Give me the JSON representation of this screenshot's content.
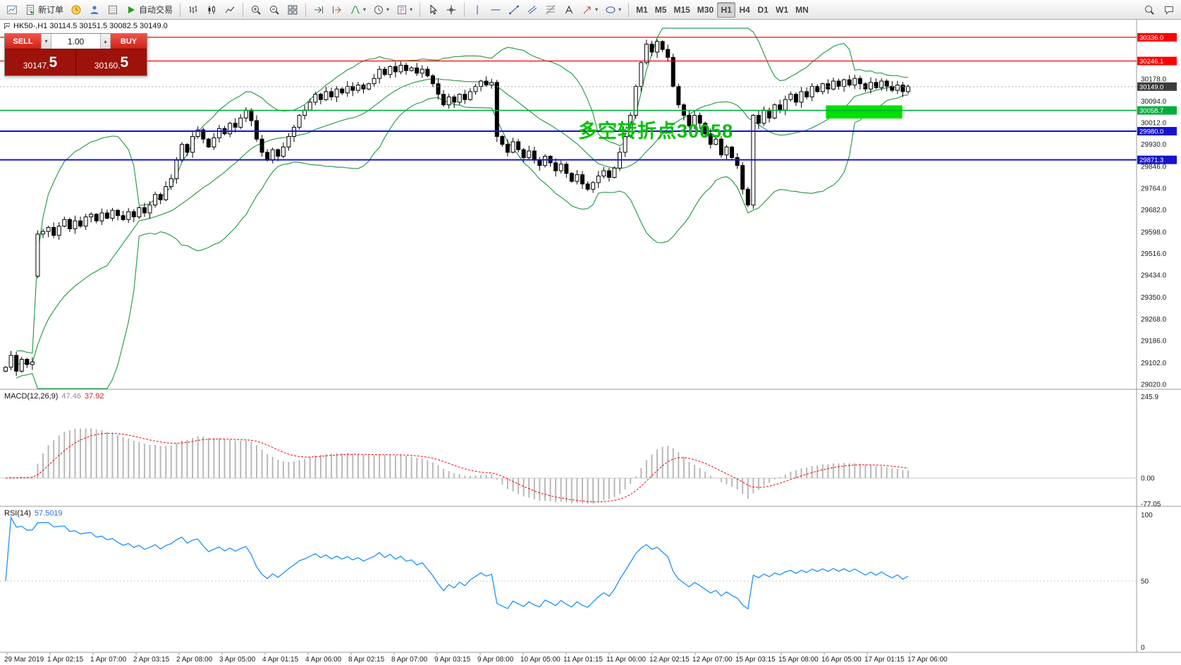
{
  "toolbar": {
    "groups": [
      {
        "items": [
          {
            "name": "new-chart",
            "icon": "new-chart"
          },
          {
            "name": "new-order",
            "icon": "new-order",
            "label": "新订单"
          },
          {
            "name": "market-watch",
            "icon": "market-watch"
          },
          {
            "name": "navigator",
            "icon": "navigator"
          },
          {
            "name": "data-window",
            "icon": "data-window"
          },
          {
            "name": "autotrading",
            "icon": "autotrading",
            "label": "自动交易"
          }
        ]
      },
      {
        "items": [
          {
            "name": "bar-chart",
            "icon": "bar-chart"
          },
          {
            "name": "candlestick-chart",
            "icon": "candlestick"
          },
          {
            "name": "line-chart",
            "icon": "line-chart"
          }
        ]
      },
      {
        "items": [
          {
            "name": "zoom-in",
            "icon": "zoom-in"
          },
          {
            "name": "zoom-out",
            "icon": "zoom-out"
          },
          {
            "name": "tile-windows",
            "icon": "tile-windows"
          }
        ]
      },
      {
        "items": [
          {
            "name": "auto-scroll",
            "icon": "auto-scroll"
          },
          {
            "name": "chart-shift",
            "icon": "chart-shift"
          },
          {
            "name": "indicators",
            "icon": "indicators",
            "arrow": true
          },
          {
            "name": "periods",
            "icon": "periods",
            "arrow": true
          },
          {
            "name": "templates",
            "icon": "templates",
            "arrow": true
          }
        ]
      },
      {
        "items": [
          {
            "name": "cursor",
            "icon": "cursor"
          },
          {
            "name": "crosshair",
            "icon": "crosshair"
          }
        ]
      },
      {
        "items": [
          {
            "name": "vertical-line",
            "icon": "vertical-line"
          },
          {
            "name": "horizontal-line",
            "icon": "horizontal-line"
          },
          {
            "name": "trendline",
            "icon": "trendline"
          },
          {
            "name": "equidistant-channel",
            "icon": "channel"
          },
          {
            "name": "fibonacci-retracement",
            "icon": "fibonacci"
          },
          {
            "name": "text-label",
            "icon": "text"
          },
          {
            "name": "arrow-objects",
            "icon": "arrows",
            "arrow": true
          },
          {
            "name": "shapes",
            "icon": "shapes",
            "arrow": true
          }
        ]
      }
    ],
    "timeframes": [
      {
        "label": "M1"
      },
      {
        "label": "M5"
      },
      {
        "label": "M15"
      },
      {
        "label": "M30"
      },
      {
        "label": "H1",
        "active": true
      },
      {
        "label": "H4"
      },
      {
        "label": "D1"
      },
      {
        "label": "W1"
      },
      {
        "label": "MN"
      }
    ],
    "right_items": [
      {
        "name": "search",
        "icon": "search"
      },
      {
        "name": "chat",
        "icon": "chat"
      }
    ]
  },
  "chart": {
    "symbol_info": "HK50-,H1  30114.5 30151.5 30082.5 30149.0",
    "annotation": {
      "text": "多空转折点30058",
      "color": "#00C000"
    },
    "trade_panel": {
      "sell_label": "SELL",
      "buy_label": "BUY",
      "volume": "1.00",
      "sell_price_main": "30147.",
      "sell_price_big": "5",
      "buy_price_main": "30160.",
      "buy_price_big": "5"
    },
    "hlines": [
      {
        "price": 30336.0,
        "label": "30336.0",
        "color": "#FF0000",
        "width": 1.3
      },
      {
        "price": 30246.1,
        "label": "30246.1",
        "color": "#FF0000",
        "width": 1.3
      },
      {
        "price": 30058.7,
        "label": "30058.7",
        "color": "#00AE3C",
        "width": 1.6
      },
      {
        "price": 29980.0,
        "label": "29980.0",
        "color": "#1414CC",
        "width": 2
      },
      {
        "price": 29871.3,
        "label": "29871.3",
        "color": "#1414CC",
        "width": 2
      }
    ],
    "current_price": {
      "value": 30149.0,
      "label": "30149.0",
      "box_color": "#3C3C3C"
    },
    "price_ticks": [
      "30178.0",
      "30094.0",
      "30012.0",
      "29930.0",
      "29846.0",
      "29764.0",
      "29682.0",
      "29598.0",
      "29516.0",
      "29434.0",
      "29350.0",
      "29268.0",
      "29186.0",
      "29102.0",
      "29020.0"
    ],
    "highlight_box": {
      "bar_start": 154,
      "bar_end": 167.5,
      "price_top": 30078,
      "price_bottom": 30028,
      "color": "#00E000"
    }
  },
  "indicators": {
    "macd": {
      "name": "MACD(12,26,9)",
      "value_main": "47.46",
      "value_signal": "37.92",
      "scale": [
        "245.9",
        "0.00",
        "-77.05"
      ],
      "fast": 12,
      "slow": 26,
      "signal": 9
    },
    "rsi": {
      "name": "RSI(14)",
      "value": "57.5019",
      "scale": [
        "100",
        "50",
        "0"
      ],
      "period": 14
    }
  },
  "time_axis": [
    "29 Mar 2019",
    "1 Apr 02:15",
    "1 Apr 07:00",
    "2 Apr 03:15",
    "2 Apr 08:00",
    "3 Apr 05:00",
    "4 Apr 01:15",
    "4 Apr 06:00",
    "8 Apr 02:15",
    "8 Apr 07:00",
    "9 Apr 03:15",
    "9 Apr 08:00",
    "10 Apr 05:00",
    "11 Apr 01:15",
    "11 Apr 06:00",
    "12 Apr 02:15",
    "12 Apr 07:00",
    "15 Apr 03:15",
    "15 Apr 08:00",
    "16 Apr 05:00",
    "17 Apr 01:15",
    "17 Apr 06:00"
  ],
  "chart_data": {
    "type": "candlestick",
    "symbol": "HK50-",
    "timeframe": "H1",
    "ohlc_current": {
      "open": 30114.5,
      "high": 30151.5,
      "low": 30082.5,
      "close": 30149.0
    },
    "y_axis": {
      "min": 29001,
      "max": 30370
    },
    "first_open": 29070,
    "opens_override": {
      "6": 29430
    },
    "closes": [
      29085,
      29130,
      29070,
      29115,
      29095,
      29105,
      29590,
      29600,
      29615,
      29585,
      29620,
      29645,
      29610,
      29640,
      29620,
      29655,
      29665,
      29640,
      29670,
      29650,
      29680,
      29660,
      29645,
      29675,
      29655,
      29690,
      29670,
      29700,
      29740,
      29720,
      29770,
      29800,
      29870,
      29930,
      29900,
      29960,
      29985,
      29950,
      29920,
      29955,
      29990,
      29970,
      30010,
      29995,
      30030,
      30060,
      30020,
      29950,
      29900,
      29870,
      29910,
      29885,
      29920,
      29960,
      29995,
      30040,
      30060,
      30090,
      30120,
      30100,
      30130,
      30110,
      30140,
      30125,
      30150,
      30135,
      30155,
      30140,
      30160,
      30180,
      30215,
      30195,
      30225,
      30205,
      30230,
      30210,
      30220,
      30200,
      30215,
      30190,
      30160,
      30120,
      30080,
      30110,
      30090,
      30120,
      30100,
      30130,
      30150,
      30170,
      30155,
      30165,
      29960,
      29930,
      29900,
      29940,
      29910,
      29880,
      29905,
      29870,
      29850,
      29885,
      29860,
      29830,
      29855,
      29820,
      29790,
      29815,
      29780,
      29760,
      29785,
      29810,
      29830,
      29805,
      29840,
      29900,
      29960,
      30040,
      30150,
      30240,
      30310,
      30280,
      30320,
      30290,
      30260,
      30150,
      30080,
      30040,
      30000,
      30040,
      30010,
      29970,
      29930,
      29950,
      29890,
      29920,
      29880,
      29850,
      29760,
      29700,
      30040,
      30010,
      30060,
      30030,
      30080,
      30060,
      30100,
      30120,
      30090,
      30130,
      30110,
      30150,
      30130,
      30160,
      30140,
      30170,
      30150,
      30175,
      30155,
      30180,
      30160,
      30140,
      30165,
      30145,
      30170,
      30150,
      30135,
      30155,
      30130,
      30149
    ],
    "bollinger": {
      "period": 20,
      "deviation": 2
    },
    "macd_scale": {
      "max": 245.9,
      "min": -77.05
    },
    "rsi_scale": {
      "max": 100,
      "min": 0
    }
  }
}
